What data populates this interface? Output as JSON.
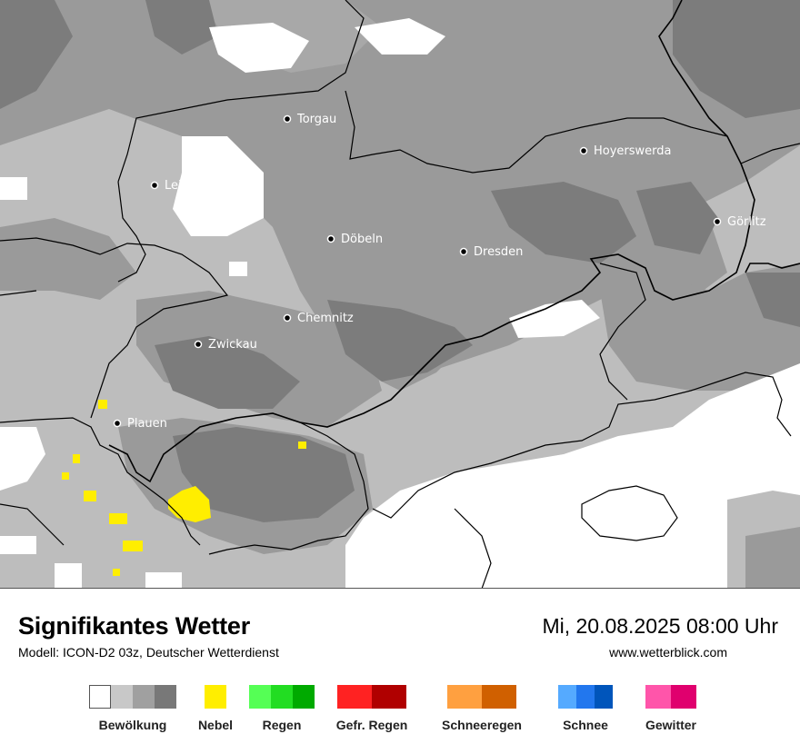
{
  "map": {
    "cities": [
      {
        "name": "Torgau"
      },
      {
        "name": "Hoyerswerda"
      },
      {
        "name": "Leipzig"
      },
      {
        "name": "Görlitz"
      },
      {
        "name": "Döbeln"
      },
      {
        "name": "Dresden"
      },
      {
        "name": "Chemnitz"
      },
      {
        "name": "Zwickau"
      },
      {
        "name": "Plauen"
      }
    ]
  },
  "footer": {
    "title": "Signifikantes Wetter",
    "subtitle": "Modell: ICON-D2 03z, Deutscher Wetterdienst",
    "datetime": "Mi, 20.08.2025 08:00 Uhr",
    "website": "www.wetterblick.com"
  },
  "legend": [
    {
      "label": "Bewölkung",
      "colors": [
        "#ffffff",
        "#c8c8c8",
        "#a0a0a0",
        "#787878"
      ]
    },
    {
      "label": "Nebel",
      "colors": [
        "#ffee00"
      ]
    },
    {
      "label": "Regen",
      "colors": [
        "#55ff55",
        "#22dd22",
        "#00aa00"
      ]
    },
    {
      "label": "Gefr. Regen",
      "colors": [
        "#ff2222",
        "#b00000"
      ]
    },
    {
      "label": "Schneeregen",
      "colors": [
        "#ffa040",
        "#d06000"
      ]
    },
    {
      "label": "Schnee",
      "colors": [
        "#55aaff",
        "#2277ee",
        "#0055bb"
      ]
    },
    {
      "label": "Gewitter",
      "colors": [
        "#ff55aa",
        "#e0006e"
      ]
    }
  ]
}
